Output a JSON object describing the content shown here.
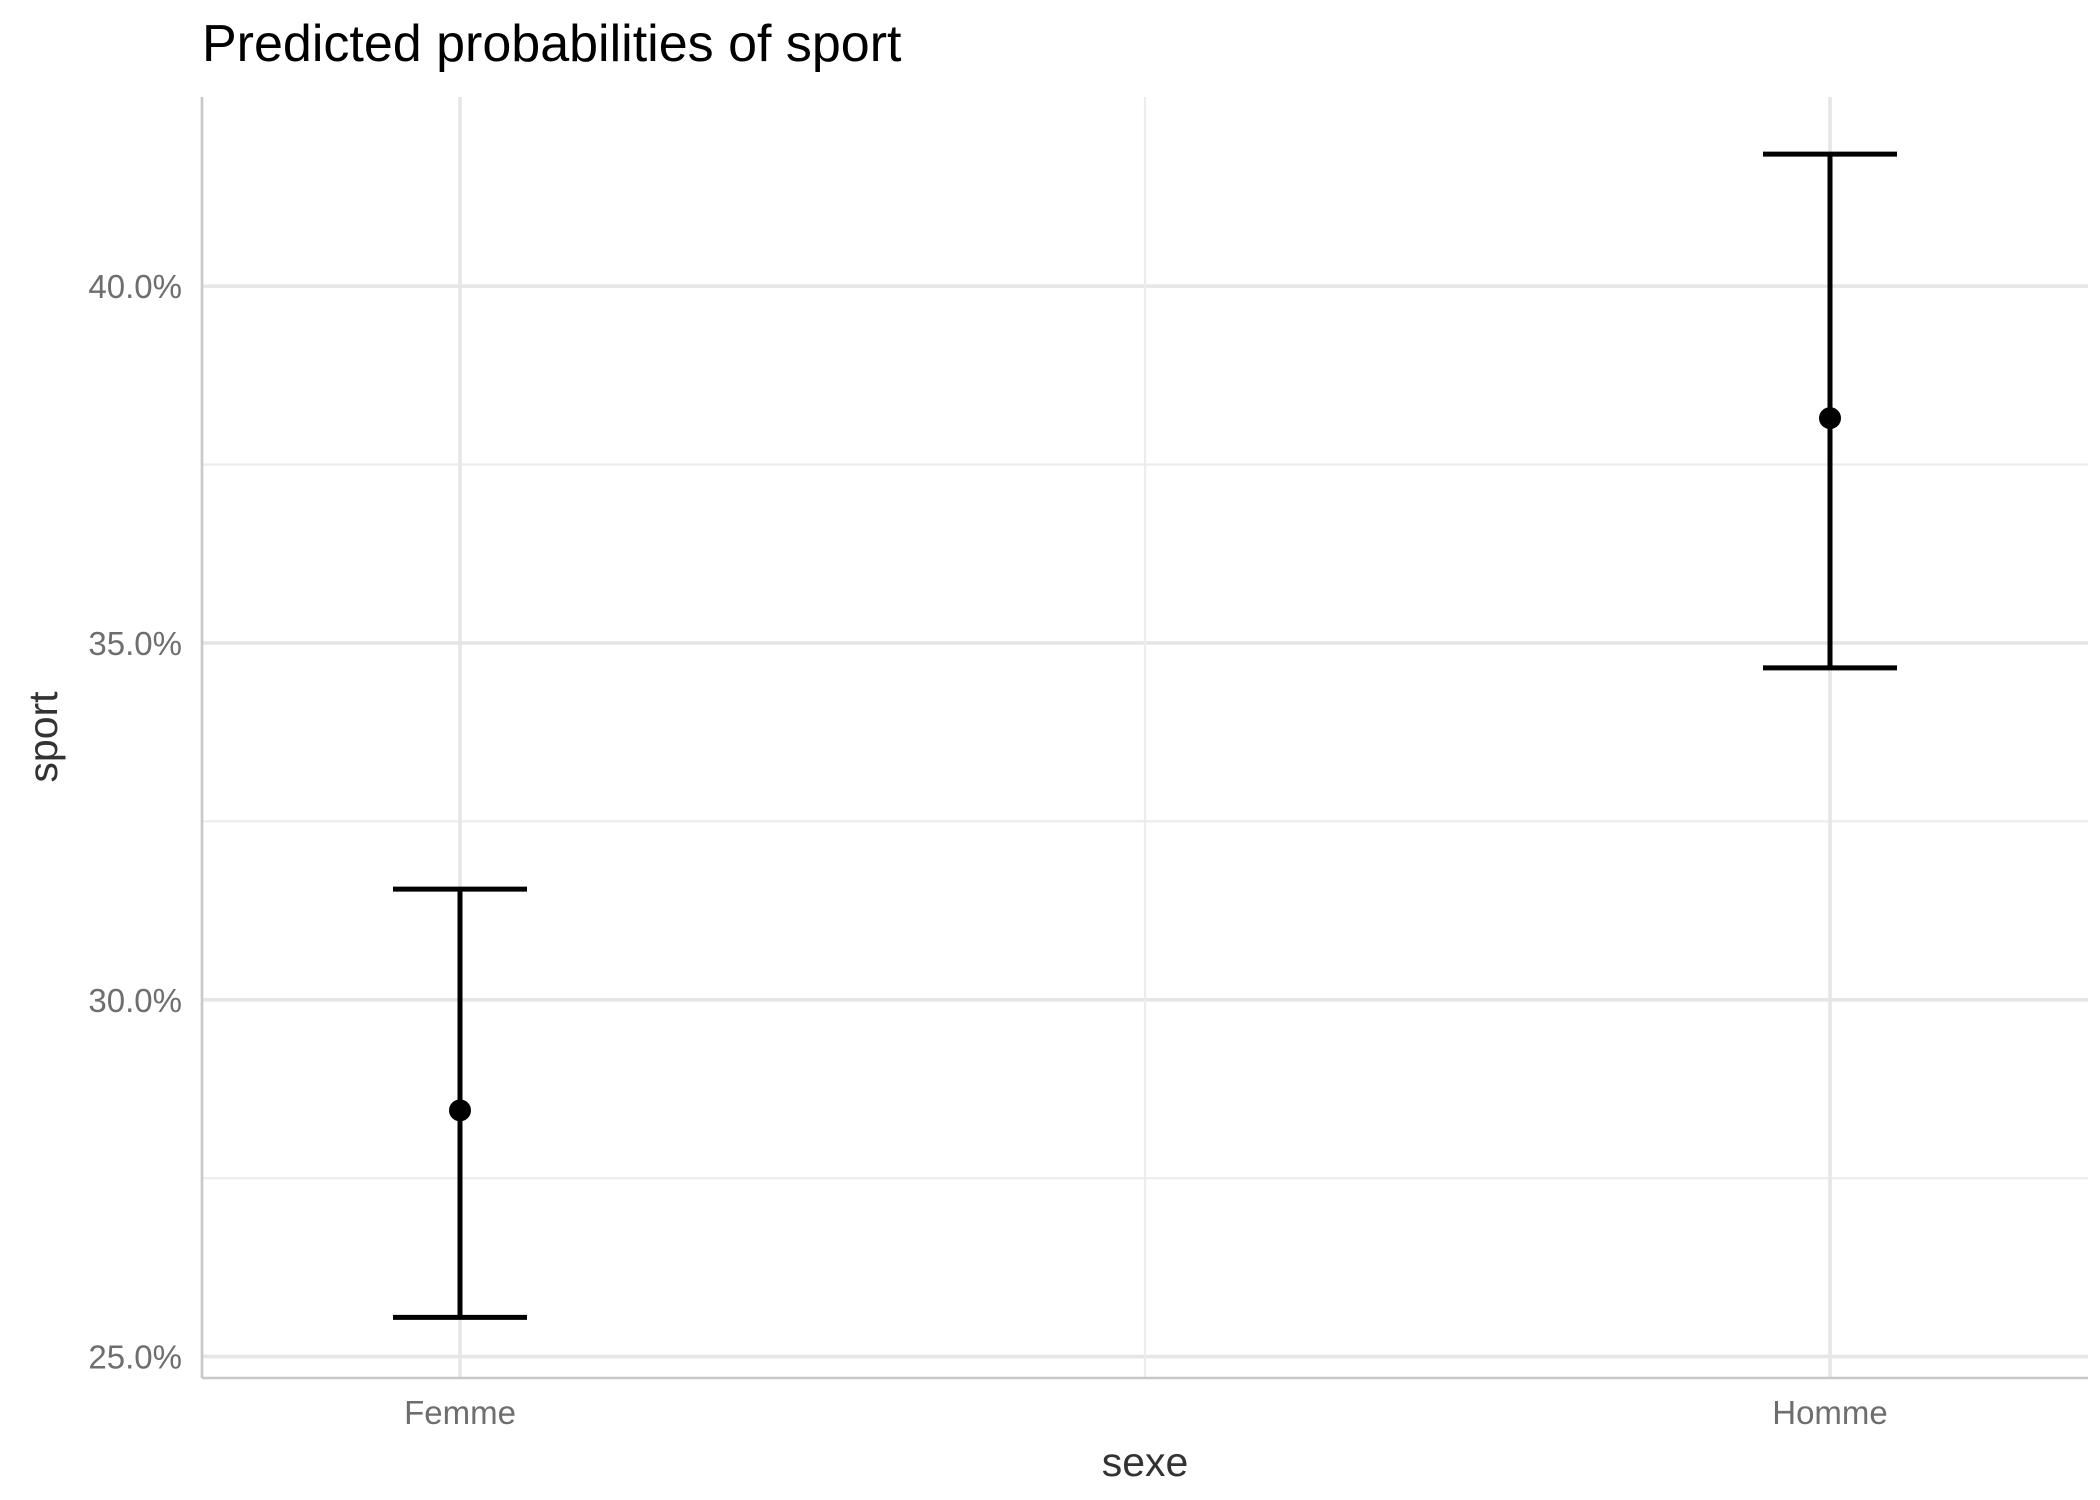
{
  "chart_data": {
    "type": "errorbar",
    "title": "Predicted probabilities of sport",
    "xlabel": "sexe",
    "ylabel": "sport",
    "categories": [
      "Femme",
      "Homme"
    ],
    "estimates": [
      28.45,
      38.15
    ],
    "lower": [
      25.55,
      34.65
    ],
    "upper": [
      31.55,
      41.85
    ],
    "ylim": [
      24.7,
      42.65
    ],
    "yticks": [
      25,
      30,
      35,
      40
    ],
    "ytick_labels": [
      "25.0%",
      "30.0%",
      "35.0%",
      "40.0%"
    ],
    "y_minor_ticks": [
      27.5,
      32.5,
      37.5
    ],
    "grid": true,
    "legend": "none",
    "colors": {
      "marks": "#000000",
      "grid": "#e6e6e6"
    }
  }
}
